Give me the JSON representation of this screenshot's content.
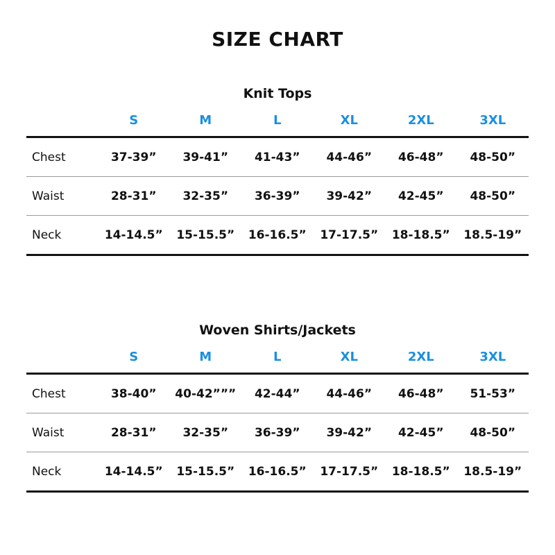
{
  "title": "SIZE CHART",
  "accent_color": "#1a8fe0",
  "sections": [
    {
      "title": "Knit Tops",
      "sizes": [
        "S",
        "M",
        "L",
        "XL",
        "2XL",
        "3XL"
      ],
      "rows": [
        {
          "label": "Chest",
          "values": [
            "37-39”",
            "39-41”",
            "41-43”",
            "44-46”",
            "46-48”",
            "48-50”"
          ]
        },
        {
          "label": "Waist",
          "values": [
            "28-31”",
            "32-35”",
            "36-39”",
            "39-42”",
            "42-45”",
            "48-50”"
          ]
        },
        {
          "label": "Neck",
          "values": [
            "14-14.5”",
            "15-15.5”",
            "16-16.5”",
            "17-17.5”",
            "18-18.5”",
            "18.5-19”"
          ]
        }
      ]
    },
    {
      "title": "Woven Shirts/Jackets",
      "sizes": [
        "S",
        "M",
        "L",
        "XL",
        "2XL",
        "3XL"
      ],
      "rows": [
        {
          "label": "Chest",
          "values": [
            "38-40”",
            "40-42”””",
            "42-44”",
            "44-46”",
            "46-48”",
            "51-53”"
          ]
        },
        {
          "label": "Waist",
          "values": [
            "28-31”",
            "32-35”",
            "36-39”",
            "39-42”",
            "42-45”",
            "48-50”"
          ]
        },
        {
          "label": "Neck",
          "values": [
            "14-14.5”",
            "15-15.5”",
            "16-16.5”",
            "17-17.5”",
            "18-18.5”",
            "18.5-19”"
          ]
        }
      ]
    }
  ]
}
